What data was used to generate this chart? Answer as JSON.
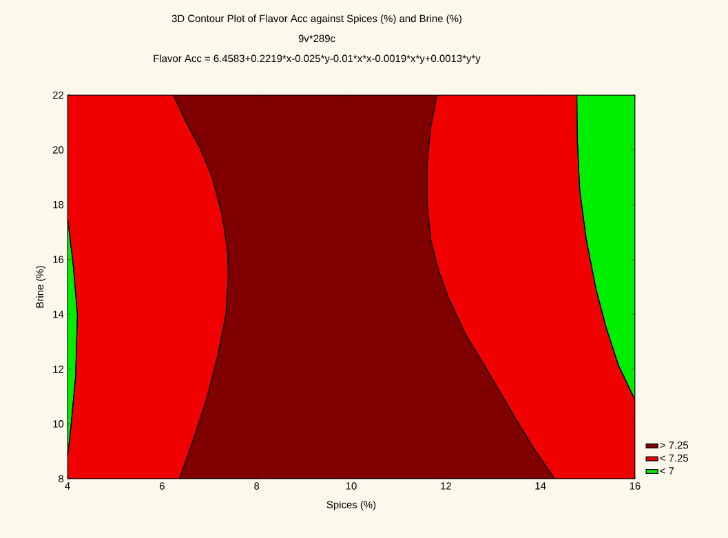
{
  "chart_data": {
    "type": "area",
    "title": "3D Contour Plot of Flavor Acc against Spices (%) and Brine (%)",
    "subtitle": "9v*289c",
    "annotations": [
      "Flavor Acc = 6.4583+0.2219*x-0.025*y-0.01*x*x-0.0019*x*y+0.0013*y*y"
    ],
    "xlabel": "Spices (%)",
    "ylabel": "Brine (%)",
    "xlim": [
      4,
      16
    ],
    "ylim": [
      8,
      22
    ],
    "xticks": [
      4,
      6,
      8,
      10,
      12,
      14,
      16
    ],
    "yticks": [
      8,
      10,
      12,
      14,
      16,
      18,
      20,
      22
    ],
    "legend": "bottom right",
    "series": [
      {
        "name": "> 7.25",
        "color": "#800000",
        "x": [
          6.24,
          6.51,
          6.8,
          7.06,
          7.27,
          7.39,
          7.4,
          7.35,
          7.17,
          6.95,
          6.69,
          6.37,
          14.3,
          13.85,
          13.43,
          12.84,
          12.42,
          12.05,
          11.84,
          11.68,
          11.6,
          11.6,
          11.68,
          11.81
        ],
        "values": [
          22,
          21.01,
          20.08,
          19.0,
          17.63,
          16.26,
          15.35,
          13.98,
          12.43,
          10.95,
          9.58,
          8,
          8,
          9.13,
          10.32,
          12.06,
          13.25,
          14.62,
          15.62,
          16.72,
          18.09,
          19.46,
          20.83,
          22
        ]
      },
      {
        "name": "< 7.25",
        "color": "#f00000",
        "x": [
          4,
          6.24,
          6.51,
          6.8,
          7.06,
          7.27,
          7.39,
          7.4,
          7.35,
          7.17,
          6.95,
          6.69,
          6.37,
          4,
          4,
          4.07,
          4.17,
          4.21,
          4.12,
          4
        ],
        "values": [
          22,
          22,
          21.01,
          20.08,
          19.0,
          17.63,
          16.26,
          15.35,
          13.98,
          12.43,
          10.95,
          9.58,
          8,
          8,
          8.77,
          9.87,
          11.7,
          13.99,
          15.81,
          17.54
        ]
      },
      {
        "color": "#f00000",
        "x": [
          11.81,
          11.68,
          11.6,
          11.6,
          11.68,
          11.84,
          12.05,
          12.42,
          12.84,
          13.43,
          13.85,
          14.3,
          16,
          16,
          15.65,
          15.39,
          15.18,
          14.97,
          14.83,
          14.78,
          14.77
        ],
        "values": [
          22,
          20.83,
          19.46,
          18.09,
          16.72,
          15.62,
          14.62,
          13.25,
          12.06,
          10.32,
          9.13,
          8,
          8,
          10.87,
          12.14,
          13.51,
          14.88,
          16.72,
          18.54,
          20.37,
          22
        ]
      },
      {
        "name": "< 7",
        "color": "#00ee00",
        "x": [
          4,
          4.12,
          4.21,
          4.17,
          4.07,
          4
        ],
        "values": [
          17.54,
          15.81,
          13.99,
          11.7,
          9.87,
          8.77
        ]
      },
      {
        "color": "#00ee00",
        "x": [
          14.77,
          14.78,
          14.83,
          14.97,
          15.18,
          15.39,
          15.65,
          16,
          16
        ],
        "values": [
          22,
          20.37,
          18.54,
          16.72,
          14.88,
          13.51,
          12.14,
          10.87,
          22
        ]
      }
    ]
  }
}
